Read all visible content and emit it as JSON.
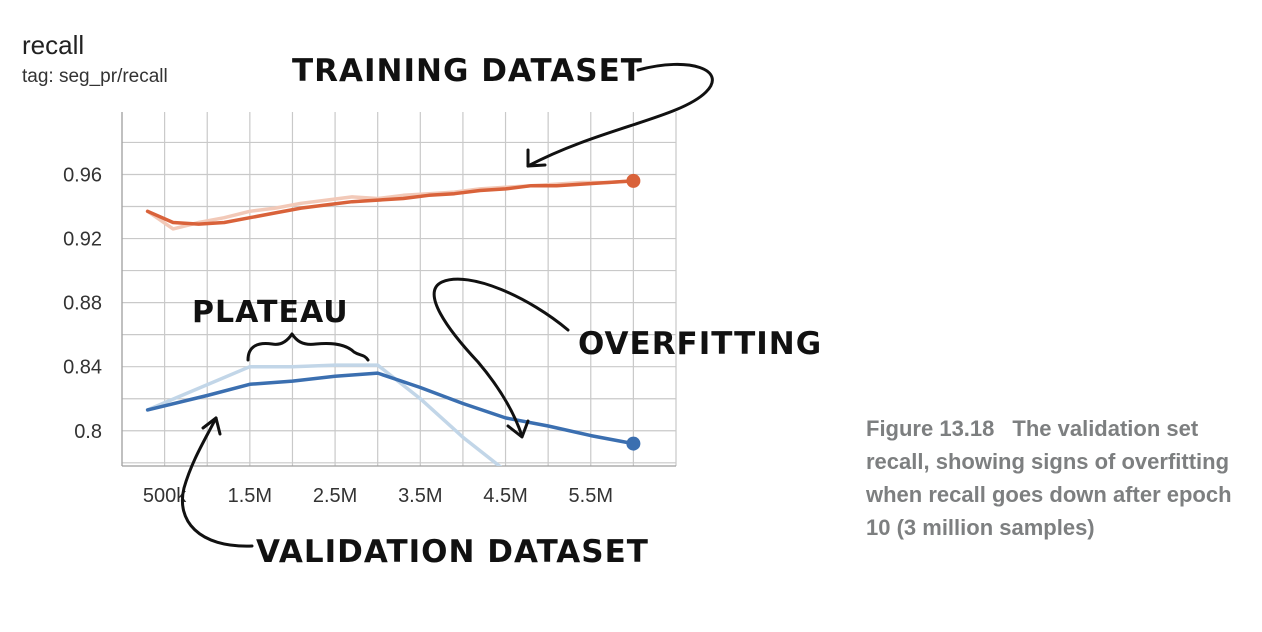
{
  "chart_data": {
    "type": "line",
    "title": "recall",
    "subtitle": "tag: seg_pr/recall",
    "x_ticks": [
      {
        "value": 500000,
        "label": "500k"
      },
      {
        "value": 1500000,
        "label": "1.5M"
      },
      {
        "value": 2500000,
        "label": "2.5M"
      },
      {
        "value": 3500000,
        "label": "3.5M"
      },
      {
        "value": 4500000,
        "label": "4.5M"
      },
      {
        "value": 5500000,
        "label": "5.5M"
      }
    ],
    "y_ticks": [
      {
        "value": 0.8,
        "label": "0.8"
      },
      {
        "value": 0.84,
        "label": "0.84"
      },
      {
        "value": 0.88,
        "label": "0.88"
      },
      {
        "value": 0.92,
        "label": "0.92"
      },
      {
        "value": 0.96,
        "label": "0.96"
      }
    ],
    "xlim": [
      0,
      6500000
    ],
    "ylim": [
      0.778,
      0.999
    ],
    "grid": true,
    "series": [
      {
        "role": "training-smoothed",
        "color": "#d9623a",
        "x": [
          300000,
          600000,
          900000,
          1200000,
          1500000,
          1800000,
          2100000,
          2400000,
          2700000,
          3000000,
          3300000,
          3600000,
          3900000,
          4200000,
          4500000,
          4800000,
          5100000,
          5400000,
          5700000,
          6000000
        ],
        "values": [
          0.937,
          0.93,
          0.929,
          0.93,
          0.933,
          0.936,
          0.939,
          0.941,
          0.943,
          0.944,
          0.945,
          0.947,
          0.948,
          0.95,
          0.951,
          0.953,
          0.953,
          0.954,
          0.955,
          0.956
        ]
      },
      {
        "role": "training-raw",
        "color": "#f2c9b8",
        "x": [
          300000,
          600000,
          900000,
          1200000,
          1500000,
          1800000,
          2100000,
          2400000,
          2700000,
          3000000,
          3300000,
          3600000,
          3900000,
          4200000,
          4500000,
          4800000,
          5100000,
          5400000,
          5700000,
          6000000
        ],
        "values": [
          0.937,
          0.926,
          0.93,
          0.933,
          0.937,
          0.939,
          0.942,
          0.944,
          0.946,
          0.945,
          0.947,
          0.948,
          0.949,
          0.951,
          0.952,
          0.953,
          0.954,
          0.955,
          0.955,
          0.956
        ]
      },
      {
        "role": "validation-smoothed",
        "color": "#3b6fb0",
        "x": [
          300000,
          1000000,
          1500000,
          2000000,
          2500000,
          3000000,
          3500000,
          4000000,
          4500000,
          5000000,
          5500000,
          6000000
        ],
        "values": [
          0.813,
          0.822,
          0.829,
          0.831,
          0.834,
          0.836,
          0.827,
          0.817,
          0.808,
          0.803,
          0.797,
          0.792
        ]
      },
      {
        "role": "validation-raw",
        "color": "#c2d6e8",
        "x": [
          300000,
          1500000,
          2000000,
          2500000,
          3000000,
          3500000,
          4000000,
          4500000
        ],
        "values": [
          0.813,
          0.84,
          0.84,
          0.841,
          0.841,
          0.82,
          0.796,
          0.775
        ]
      }
    ],
    "annotations": [
      "TRAINING DATASET",
      "VALIDATION DATASET",
      "PLATEAU",
      "OVERFITTING"
    ]
  },
  "caption": {
    "label": "Figure 13.18",
    "text": "The validation set recall, showing signs of overfitting when recall goes down after epoch 10 (3 million samples)"
  }
}
